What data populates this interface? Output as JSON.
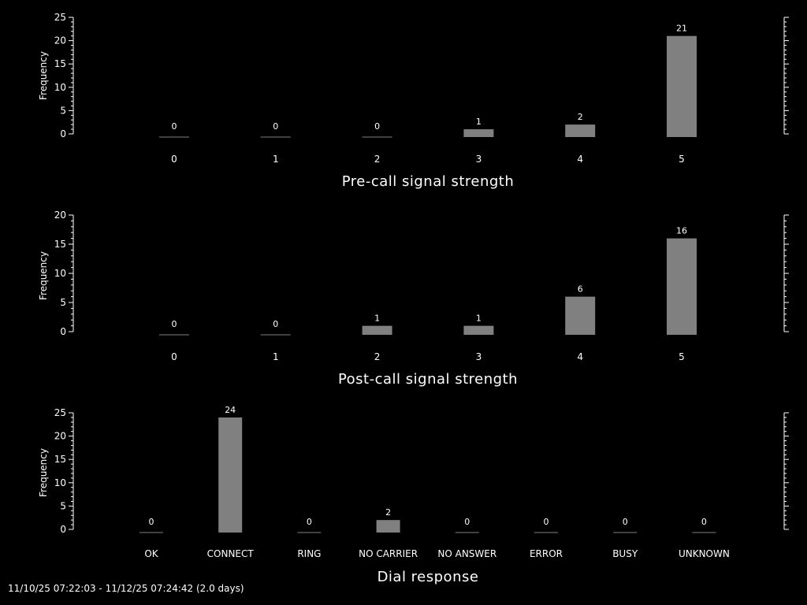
{
  "colors": {
    "background": "#000000",
    "bar": "#808080",
    "axis": "#ffffff",
    "text": "#ffffff"
  },
  "footer": "11/10/25 07:22:03 - 11/12/25 07:24:42 (2.0 days)",
  "chart_data": [
    {
      "type": "bar",
      "categories": [
        "0",
        "1",
        "2",
        "3",
        "4",
        "5"
      ],
      "values": [
        0,
        0,
        0,
        1,
        2,
        21
      ],
      "xlabel": "Pre-call signal strength",
      "ylabel": "Frequency",
      "ylim": [
        0,
        25
      ],
      "yticks": [
        "0",
        "5",
        "10",
        "15",
        "20",
        "25"
      ]
    },
    {
      "type": "bar",
      "categories": [
        "0",
        "1",
        "2",
        "3",
        "4",
        "5"
      ],
      "values": [
        0,
        0,
        1,
        1,
        6,
        16
      ],
      "xlabel": "Post-call signal strength",
      "ylabel": "Frequency",
      "ylim": [
        0,
        20
      ],
      "yticks": [
        "0",
        "5",
        "10",
        "15",
        "20"
      ]
    },
    {
      "type": "bar",
      "categories": [
        "OK",
        "CONNECT",
        "RING",
        "NO CARRIER",
        "NO ANSWER",
        "ERROR",
        "BUSY",
        "UNKNOWN"
      ],
      "values": [
        0,
        24,
        0,
        2,
        0,
        0,
        0,
        0
      ],
      "xlabel": "Dial response",
      "ylabel": "Frequency",
      "ylim": [
        0,
        25
      ],
      "yticks": [
        "0",
        "5",
        "10",
        "15",
        "20",
        "25"
      ]
    }
  ]
}
